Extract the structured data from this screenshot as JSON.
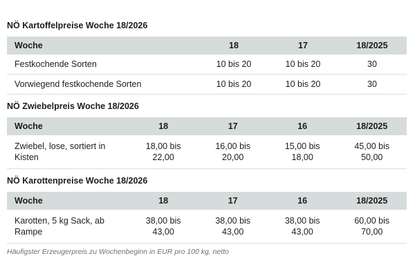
{
  "colors": {
    "header_bg": "#d6dbdb",
    "text": "#1d1d1b",
    "row_border": "#dedede",
    "footnote_text": "#6f6f6f",
    "background": "#ffffff"
  },
  "footnote": "Häufigster Erzeugerpreis zu Wochenbeginn in EUR pro 100 kg, netto",
  "tables": [
    {
      "title": "NÖ Kartoffelpreise Woche 18/2026",
      "columns": [
        "Woche",
        "18",
        "17",
        "18/2025"
      ],
      "rows": [
        {
          "label": "Festkochende Sorten",
          "values": [
            "10 bis 20",
            "10 bis 20",
            "30"
          ]
        },
        {
          "label": "Vorwiegend festkochende Sorten",
          "values": [
            "10 bis 20",
            "10 bis 20",
            "30"
          ]
        }
      ]
    },
    {
      "title": "NÖ Zwiebelpreis Woche 18/2026",
      "columns": [
        "Woche",
        "18",
        "17",
        "16",
        "18/2025"
      ],
      "rows": [
        {
          "label": "Zwiebel, lose, sortiert in Kisten",
          "values": [
            "18,00 bis 22,00",
            "16,00 bis 20,00",
            "15,00 bis 18,00",
            "45,00 bis 50,00"
          ]
        }
      ]
    },
    {
      "title": "NÖ Karottenpreise Woche 18/2026",
      "columns": [
        "Woche",
        "18",
        "17",
        "16",
        "18/2025"
      ],
      "rows": [
        {
          "label": "Karotten, 5 kg Sack, ab Rampe",
          "values": [
            "38,00 bis 43,00",
            "38,00 bis 43,00",
            "38,00 bis 43,00",
            "60,00 bis 70,00"
          ]
        }
      ]
    }
  ]
}
